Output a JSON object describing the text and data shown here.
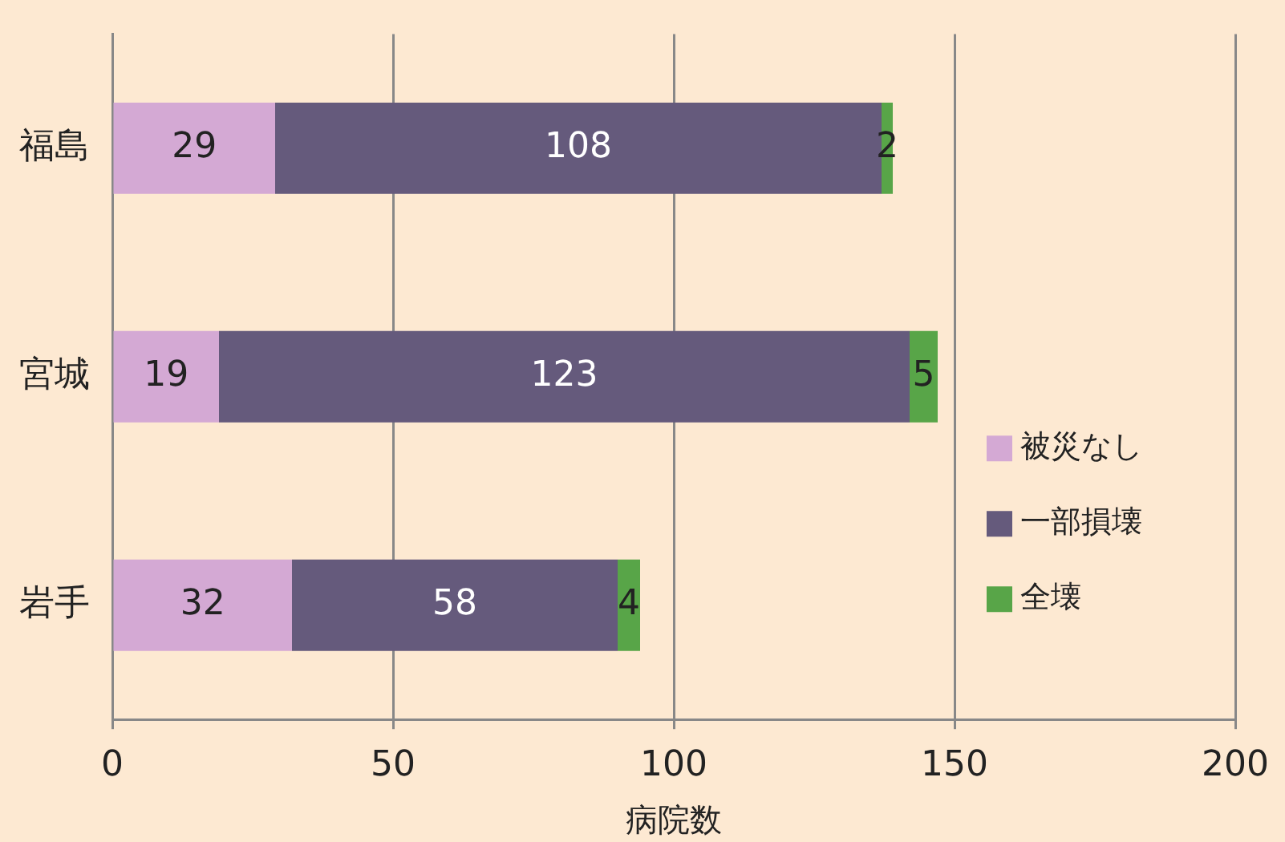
{
  "chart_data": {
    "type": "bar",
    "orientation": "horizontal",
    "stacked": true,
    "xlabel": "病院数",
    "categories": [
      "福島",
      "宮城",
      "岩手"
    ],
    "series": [
      {
        "name": "被災なし",
        "color": "#d4a9d4",
        "values": [
          29,
          19,
          32
        ]
      },
      {
        "name": "一部損壊",
        "color": "#655a7c",
        "values": [
          108,
          123,
          58
        ]
      },
      {
        "name": "全壊",
        "color": "#58a548",
        "values": [
          2,
          5,
          4
        ]
      }
    ],
    "xlim": [
      0,
      200
    ],
    "xticks": [
      0,
      50,
      100,
      150,
      200
    ],
    "grid": "x",
    "legend": "bottom right",
    "data_labels": true
  }
}
